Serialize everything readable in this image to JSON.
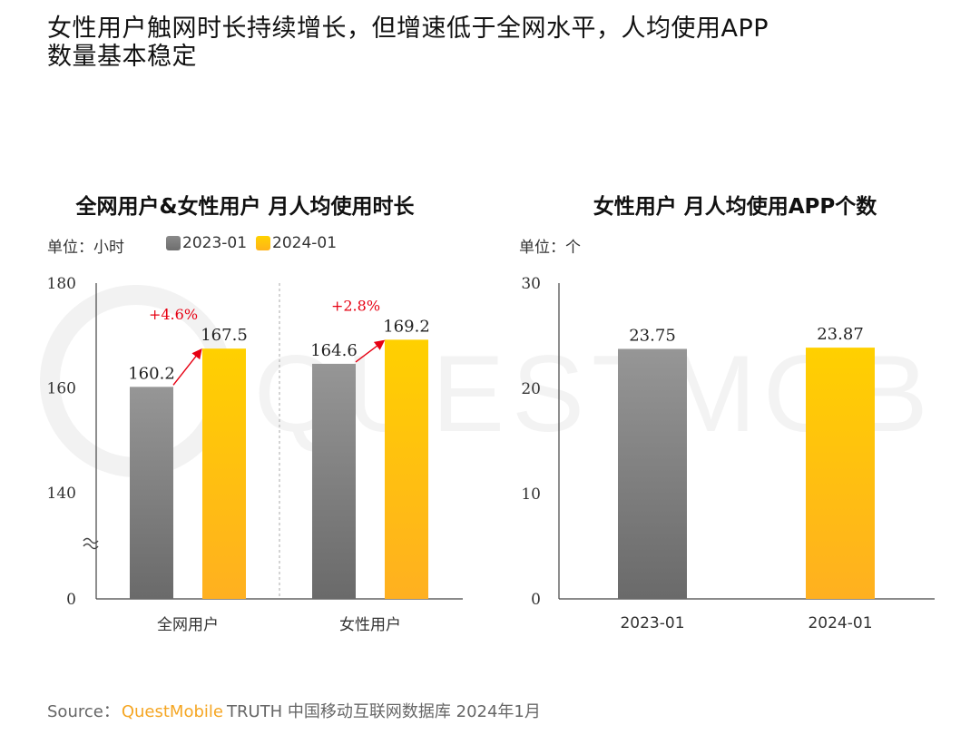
{
  "page_title": "女性用户触网时长持续增长，但增速低于全网水平，人均使用APP数量基本稳定",
  "watermark": "QUESTMOBILE",
  "colors": {
    "gray": "#7a7a7a",
    "gold": "#ffc107",
    "growth_red": "#e60012"
  },
  "legend": {
    "series1": "2023-01",
    "series2": "2024-01"
  },
  "chart_data": [
    {
      "type": "bar",
      "title": "全网用户&女性用户 月人均使用时长",
      "unit": "单位：小时",
      "categories": [
        "全网用户",
        "女性用户"
      ],
      "series": [
        {
          "name": "2023-01",
          "values": [
            160.2,
            164.6
          ]
        },
        {
          "name": "2024-01",
          "values": [
            167.5,
            169.2
          ]
        }
      ],
      "growth_labels": [
        "+4.6%",
        "+2.8%"
      ],
      "yticks": [
        "0",
        "140",
        "160",
        "180"
      ],
      "axis_break": true
    },
    {
      "type": "bar",
      "title": "女性用户 月人均使用APP个数",
      "unit": "单位：个",
      "categories": [
        "2023-01",
        "2024-01"
      ],
      "values": [
        23.75,
        23.87
      ],
      "ylim": [
        0,
        30
      ],
      "yticks": [
        "0",
        "10",
        "20",
        "30"
      ]
    }
  ],
  "source": {
    "prefix": "Source：",
    "brand": "QuestMobile",
    "text": "TRUTH 中国移动互联网数据库 2024年1月"
  }
}
